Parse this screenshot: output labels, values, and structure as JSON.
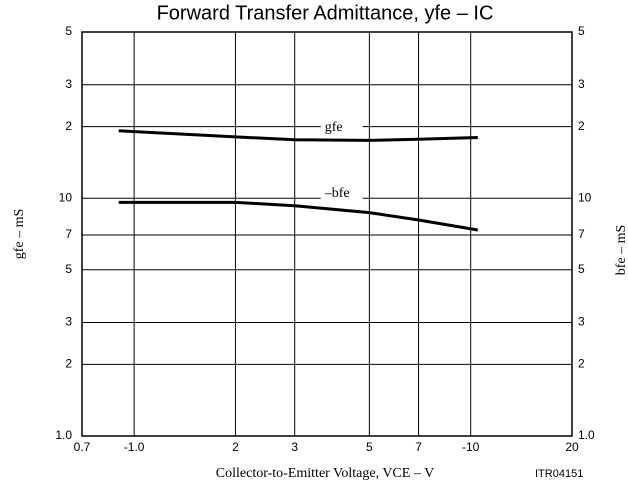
{
  "chart_data": {
    "type": "line",
    "title": "Forward Transfer Admittance, yfe – IC",
    "x_label": "Collector-to-Emitter Voltage, VCE – V",
    "y_label": "gfe – mS",
    "y2_label": "bfe – mS",
    "annotation": "ITR04151",
    "x_log": true,
    "y_log": true,
    "grid": true,
    "xlim": [
      0.7,
      20
    ],
    "ylim": [
      1,
      50
    ],
    "xticks": [
      0.7,
      {
        "value": 1,
        "label": "-1.0"
      },
      2,
      3,
      5,
      7,
      {
        "value": 10,
        "label": "-10"
      },
      20
    ],
    "yticks": [
      {
        "value": 1,
        "label": "1.0"
      },
      2,
      3,
      5,
      7,
      10,
      {
        "value": 20,
        "label": "2"
      },
      {
        "value": 30,
        "label": "3"
      },
      {
        "value": 50,
        "label": "5"
      }
    ],
    "x": [
      0.9,
      2,
      3,
      5,
      7,
      10.5
    ],
    "series": [
      {
        "name": "gfe",
        "color": "#000000",
        "values": [
          19.2,
          18.1,
          17.6,
          17.5,
          17.7,
          18
        ]
      },
      {
        "name": "–bfe",
        "color": "#000000",
        "values": [
          9.6,
          9.6,
          9.3,
          8.7,
          8.1,
          7.35
        ]
      }
    ]
  }
}
